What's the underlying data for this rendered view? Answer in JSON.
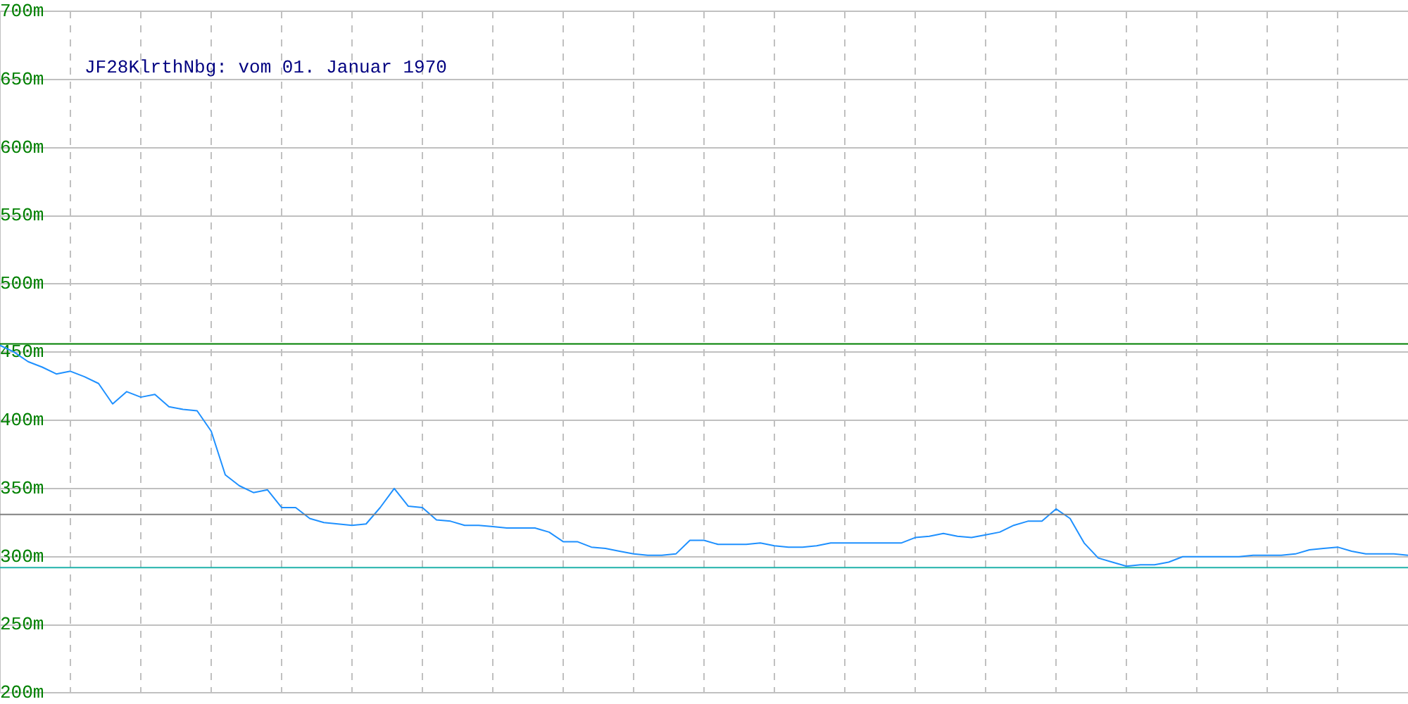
{
  "chart_data": {
    "type": "line",
    "title": "JF28KlrthNbg: vom 01. Januar 1970",
    "categories": [
      null,
      null,
      null,
      null,
      null,
      null,
      null,
      null,
      null,
      null,
      null,
      null,
      null,
      null,
      null,
      null,
      null,
      null,
      null,
      null,
      null,
      null,
      null,
      null,
      null,
      null,
      null,
      null,
      null,
      null,
      null,
      null,
      null,
      null,
      null,
      null,
      null,
      null,
      null,
      null,
      null,
      null,
      null,
      null,
      null,
      null,
      null,
      null,
      null,
      null,
      null,
      null,
      null,
      null,
      null,
      null,
      null,
      null,
      null,
      null,
      null,
      null,
      null,
      null,
      null,
      null,
      null,
      null,
      null,
      null,
      null,
      null,
      null,
      null,
      null,
      null,
      null,
      null,
      null,
      null,
      null,
      null,
      null,
      null,
      null,
      null,
      null,
      null,
      null,
      null,
      null,
      null,
      null,
      null,
      null,
      null,
      null,
      null,
      null,
      null,
      null
    ],
    "series": [
      {
        "color": "#1e90ff",
        "values": [
          455,
          450,
          443,
          439,
          434,
          436,
          432,
          427,
          412,
          421,
          417,
          419,
          410,
          408,
          407,
          392,
          360,
          352,
          347,
          349,
          336,
          336,
          328,
          325,
          324,
          323,
          324,
          336,
          350,
          337,
          336,
          327,
          326,
          323,
          323,
          322,
          321,
          321,
          321,
          318,
          311,
          311,
          307,
          306,
          304,
          302,
          301,
          301,
          302,
          312,
          312,
          309,
          309,
          309,
          310,
          308,
          307,
          307,
          308,
          310,
          310,
          310,
          310,
          310,
          310,
          314,
          315,
          317,
          315,
          314,
          316,
          318,
          323,
          326,
          326,
          335,
          328,
          310,
          299,
          296,
          293,
          294,
          294,
          296,
          300,
          300,
          300,
          300,
          300,
          301,
          301,
          301,
          302,
          305,
          306,
          307,
          304,
          302,
          302,
          302,
          301
        ]
      }
    ],
    "ylim": [
      200,
      700
    ],
    "yticks": [
      {
        "value": 200,
        "label": "200m"
      },
      {
        "value": 250,
        "label": "250m"
      },
      {
        "value": 300,
        "label": "300m"
      },
      {
        "value": 350,
        "label": "350m"
      },
      {
        "value": 400,
        "label": "400m"
      },
      {
        "value": 450,
        "label": "450m"
      },
      {
        "value": 500,
        "label": "500m"
      },
      {
        "value": 550,
        "label": "550m"
      },
      {
        "value": 600,
        "label": "600m"
      },
      {
        "value": 650,
        "label": "650m"
      },
      {
        "value": 700,
        "label": "700m"
      }
    ],
    "tick_labels": "y",
    "grid": true,
    "legend": false,
    "marker": "none",
    "line_style": "solid",
    "ref_lines": [
      {
        "axis": "y",
        "value": 456,
        "color": "#008000"
      },
      {
        "axis": "y",
        "value": 331,
        "color": "#808080"
      },
      {
        "axis": "y",
        "value": 292,
        "color": "#20b2aa"
      }
    ]
  }
}
